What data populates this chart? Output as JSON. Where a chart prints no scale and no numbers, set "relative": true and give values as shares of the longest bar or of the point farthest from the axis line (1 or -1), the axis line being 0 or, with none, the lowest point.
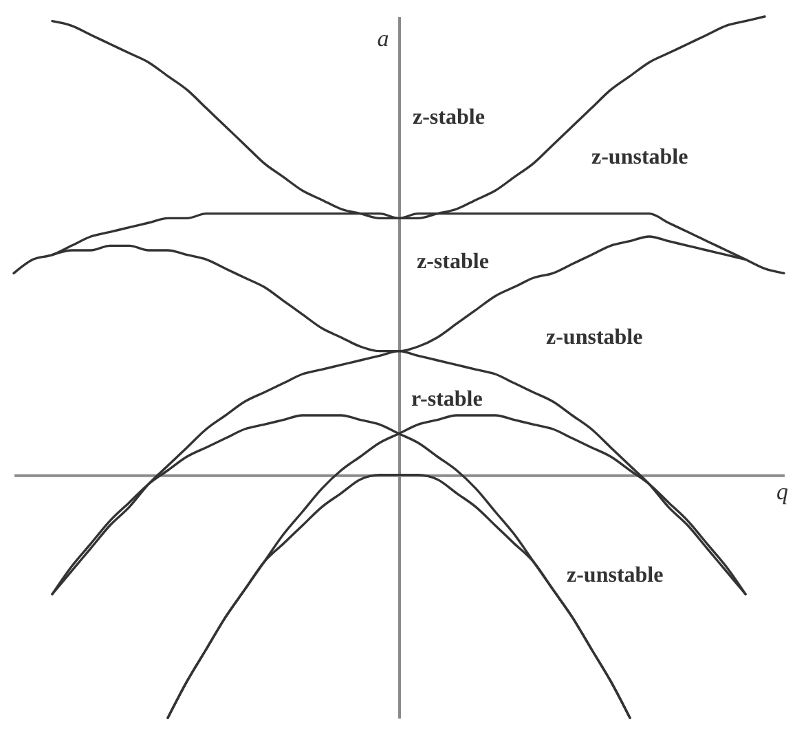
{
  "chart_data": {
    "type": "line",
    "relative": true,
    "xlabel": "q",
    "ylabel": "a",
    "tick_labels": false,
    "categories": [
      null,
      null,
      null,
      null,
      null,
      null,
      null,
      null,
      null,
      null,
      null,
      null,
      null,
      null,
      null,
      null,
      null,
      null,
      null,
      null,
      null,
      null,
      null,
      null,
      null,
      null,
      null,
      null,
      null,
      null,
      null,
      null,
      null,
      null,
      null,
      null,
      null,
      null,
      null,
      null,
      null
    ],
    "series": [
      {
        "color": "#333333",
        "values": [
          null,
          null,
          0.99,
          0.98,
          0.96,
          0.94,
          0.92,
          0.9,
          0.87,
          0.84,
          0.8,
          0.76,
          0.72,
          0.68,
          0.65,
          0.62,
          0.6,
          0.58,
          0.57,
          0.56,
          0.56,
          0.56,
          0.57,
          0.58,
          0.6,
          0.62,
          0.65,
          0.68,
          0.72,
          0.76,
          0.8,
          0.84,
          0.87,
          0.9,
          0.92,
          0.94,
          0.96,
          0.98,
          0.99,
          1.0,
          null
        ]
      },
      {
        "color": "#333333",
        "values": [
          0.44,
          0.47,
          0.48,
          0.5,
          0.52,
          0.53,
          0.54,
          0.55,
          0.56,
          0.56,
          0.57,
          0.57,
          0.57,
          0.57,
          0.57,
          0.57,
          0.57,
          0.57,
          0.57,
          0.57,
          0.56,
          0.57,
          0.57,
          0.57,
          0.57,
          0.57,
          0.57,
          0.57,
          0.57,
          0.57,
          0.57,
          0.57,
          0.57,
          0.57,
          0.55,
          0.53,
          0.51,
          0.49,
          0.47,
          0.45,
          0.44
        ]
      },
      {
        "color": "#333333",
        "values": [
          null,
          null,
          0.48,
          0.49,
          0.49,
          0.5,
          0.5,
          0.49,
          0.49,
          0.48,
          0.47,
          0.45,
          0.43,
          0.41,
          0.38,
          0.35,
          0.32,
          0.3,
          0.28,
          0.27,
          0.27,
          0.28,
          0.3,
          0.33,
          0.36,
          0.39,
          0.41,
          0.43,
          0.44,
          0.46,
          0.48,
          0.5,
          0.51,
          0.52,
          0.51,
          0.5,
          0.49,
          0.48,
          0.47,
          null,
          null
        ]
      },
      {
        "color": "#333333",
        "values": [
          null,
          null,
          -0.26,
          -0.21,
          -0.16,
          -0.11,
          -0.07,
          -0.02,
          0.02,
          0.06,
          0.1,
          0.13,
          0.16,
          0.18,
          0.2,
          0.22,
          0.23,
          0.24,
          0.25,
          0.26,
          0.27,
          0.26,
          0.25,
          0.24,
          0.23,
          0.22,
          0.2,
          0.18,
          0.16,
          0.13,
          0.1,
          0.06,
          0.02,
          -0.02,
          -0.07,
          -0.11,
          -0.16,
          -0.21,
          -0.26,
          null,
          null
        ]
      },
      {
        "color": "#333333",
        "values": [
          null,
          null,
          -0.26,
          -0.2,
          -0.15,
          -0.1,
          -0.06,
          -0.02,
          0.01,
          0.04,
          0.06,
          0.08,
          0.1,
          0.11,
          0.12,
          0.13,
          0.13,
          0.13,
          0.12,
          0.11,
          0.09,
          0.07,
          0.04,
          0.01,
          -0.03,
          -0.08,
          -0.13,
          -0.19,
          -0.25,
          -0.31,
          -0.38,
          -0.45,
          -0.53,
          null,
          null,
          null,
          null,
          null,
          null,
          null,
          null
        ]
      },
      {
        "color": "#333333",
        "values": [
          null,
          null,
          null,
          null,
          null,
          null,
          null,
          null,
          -0.53,
          -0.45,
          -0.38,
          -0.31,
          -0.25,
          -0.19,
          -0.13,
          -0.08,
          -0.03,
          0.01,
          0.04,
          0.07,
          0.09,
          0.11,
          0.12,
          0.13,
          0.13,
          0.13,
          0.12,
          0.11,
          0.1,
          0.08,
          0.06,
          0.04,
          0.01,
          -0.02,
          -0.06,
          -0.1,
          -0.15,
          -0.2,
          -0.26,
          null,
          null
        ]
      },
      {
        "color": "#333333",
        "values": [
          null,
          null,
          null,
          null,
          null,
          null,
          null,
          null,
          -0.53,
          -0.45,
          -0.38,
          -0.31,
          -0.25,
          -0.19,
          -0.15,
          -0.11,
          -0.07,
          -0.04,
          -0.01,
          0,
          0,
          0,
          -0.01,
          -0.04,
          -0.07,
          -0.11,
          -0.15,
          -0.19,
          -0.25,
          -0.31,
          -0.38,
          -0.45,
          -0.53,
          null,
          null,
          null,
          null,
          null,
          null,
          null,
          null
        ]
      }
    ],
    "annotations": [
      "z-stable",
      "z-unstable",
      "z-stable",
      "z-unstable",
      "r-stable",
      "z-unstable"
    ]
  }
}
